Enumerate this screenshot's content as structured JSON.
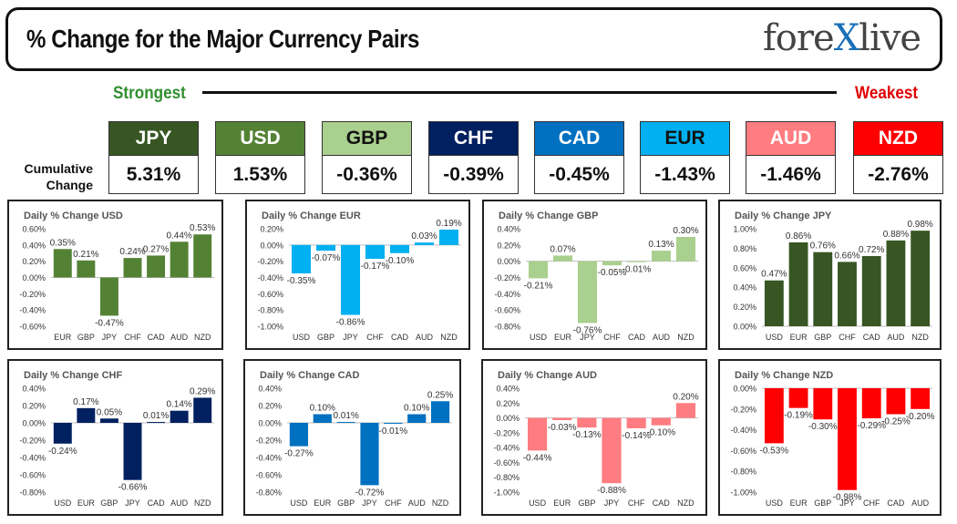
{
  "header": {
    "title": "% Change for the Major Currency Pairs",
    "logo_pre": "fore",
    "logo_x": "X",
    "logo_post": "live"
  },
  "scale": {
    "strongest": "Strongest",
    "weakest": "Weakest"
  },
  "cumulative": {
    "label_line1": "Cumulative",
    "label_line2": "Change",
    "tiles": [
      {
        "code": "JPY",
        "value": "5.31%",
        "bg": "#375623",
        "fg": "#ffffff"
      },
      {
        "code": "USD",
        "value": "1.53%",
        "bg": "#548235",
        "fg": "#ffffff"
      },
      {
        "code": "GBP",
        "value": "-0.36%",
        "bg": "#a9d08e",
        "fg": "#111111"
      },
      {
        "code": "CHF",
        "value": "-0.39%",
        "bg": "#002060",
        "fg": "#ffffff"
      },
      {
        "code": "CAD",
        "value": "-0.45%",
        "bg": "#0070c0",
        "fg": "#ffffff"
      },
      {
        "code": "EUR",
        "value": "-1.43%",
        "bg": "#00b0f0",
        "fg": "#111111"
      },
      {
        "code": "AUD",
        "value": "-1.46%",
        "bg": "#ff7c80",
        "fg": "#ffffff"
      },
      {
        "code": "NZD",
        "value": "-2.76%",
        "bg": "#ff0000",
        "fg": "#ffffff"
      }
    ]
  },
  "chart_data": [
    {
      "type": "bar",
      "title": "Daily % Change USD",
      "color": "#548235",
      "categories": [
        "EUR",
        "GBP",
        "JPY",
        "CHF",
        "CAD",
        "AUD",
        "NZD"
      ],
      "values": [
        0.35,
        0.21,
        -0.47,
        0.24,
        0.27,
        0.44,
        0.53
      ],
      "labels": [
        "0.35%",
        "0.21%",
        "-0.47%",
        "0.24%",
        "0.27%",
        "0.44%",
        "0.53%"
      ],
      "ylim": [
        -0.6,
        0.6
      ],
      "ticks": [
        0.6,
        0.4,
        0.2,
        0,
        -0.2,
        -0.4,
        -0.6
      ],
      "tick_labels": [
        "0.60%",
        "0.40%",
        "0.20%",
        "0.00%",
        "-0.20%",
        "-0.40%",
        "-0.60%"
      ]
    },
    {
      "type": "bar",
      "title": "Daily % Change EUR",
      "color": "#00b0f0",
      "categories": [
        "USD",
        "GBP",
        "JPY",
        "CHF",
        "CAD",
        "AUD",
        "NZD"
      ],
      "values": [
        -0.35,
        -0.07,
        -0.86,
        -0.17,
        -0.1,
        0.03,
        0.19
      ],
      "labels": [
        "-0.35%",
        "-0.07%",
        "-0.86%",
        "-0.17%",
        "-0.10%",
        "0.03%",
        "0.19%"
      ],
      "ylim": [
        -1.0,
        0.2
      ],
      "ticks": [
        0.2,
        0,
        -0.2,
        -0.4,
        -0.6,
        -0.8,
        -1.0
      ],
      "tick_labels": [
        "0.20%",
        "0.00%",
        "-0.20%",
        "-0.40%",
        "-0.60%",
        "-0.80%",
        "-1.00%"
      ]
    },
    {
      "type": "bar",
      "title": "Daily % Change GBP",
      "color": "#a9d08e",
      "categories": [
        "USD",
        "EUR",
        "JPY",
        "CHF",
        "CAD",
        "AUD",
        "NZD"
      ],
      "values": [
        -0.21,
        0.07,
        -0.76,
        -0.05,
        -0.01,
        0.13,
        0.3
      ],
      "labels": [
        "-0.21%",
        "0.07%",
        "-0.76%",
        "-0.05%",
        "-0.01%",
        "0.13%",
        "0.30%"
      ],
      "ylim": [
        -0.8,
        0.4
      ],
      "ticks": [
        0.4,
        0.2,
        0,
        -0.2,
        -0.4,
        -0.6,
        -0.8
      ],
      "tick_labels": [
        "0.40%",
        "0.20%",
        "0.00%",
        "-0.20%",
        "-0.40%",
        "-0.60%",
        "-0.80%"
      ]
    },
    {
      "type": "bar",
      "title": "Daily % Change JPY",
      "color": "#375623",
      "categories": [
        "USD",
        "EUR",
        "GBP",
        "CHF",
        "CAD",
        "AUD",
        "NZD"
      ],
      "values": [
        0.47,
        0.86,
        0.76,
        0.66,
        0.72,
        0.88,
        0.98
      ],
      "labels": [
        "0.47%",
        "0.86%",
        "0.76%",
        "0.66%",
        "0.72%",
        "0.88%",
        "0.98%"
      ],
      "ylim": [
        0,
        1.0
      ],
      "ticks": [
        1.0,
        0.8,
        0.6,
        0.4,
        0.2,
        0
      ],
      "tick_labels": [
        "1.00%",
        "0.80%",
        "0.60%",
        "0.40%",
        "0.20%",
        "0.00%"
      ]
    },
    {
      "type": "bar",
      "title": "Daily % Change CHF",
      "color": "#002060",
      "categories": [
        "USD",
        "EUR",
        "GBP",
        "JPY",
        "CAD",
        "AUD",
        "NZD"
      ],
      "values": [
        -0.24,
        0.17,
        0.05,
        -0.66,
        0.01,
        0.14,
        0.29
      ],
      "labels": [
        "-0.24%",
        "0.17%",
        "0.05%",
        "-0.66%",
        "0.01%",
        "0.14%",
        "0.29%"
      ],
      "ylim": [
        -0.8,
        0.4
      ],
      "ticks": [
        0.4,
        0.2,
        0,
        -0.2,
        -0.4,
        -0.6,
        -0.8
      ],
      "tick_labels": [
        "0.40%",
        "0.20%",
        "0.00%",
        "-0.20%",
        "-0.40%",
        "-0.60%",
        "-0.80%"
      ]
    },
    {
      "type": "bar",
      "title": "Daily % Change CAD",
      "color": "#0070c0",
      "categories": [
        "USD",
        "EUR",
        "GBP",
        "JPY",
        "CHF",
        "AUD",
        "NZD"
      ],
      "values": [
        -0.27,
        0.1,
        0.01,
        -0.72,
        -0.01,
        0.1,
        0.25
      ],
      "labels": [
        "-0.27%",
        "0.10%",
        "0.01%",
        "-0.72%",
        "-0.01%",
        "0.10%",
        "0.25%"
      ],
      "ylim": [
        -0.8,
        0.4
      ],
      "ticks": [
        0.4,
        0.2,
        0,
        -0.2,
        -0.4,
        -0.6,
        -0.8
      ],
      "tick_labels": [
        "0.40%",
        "0.20%",
        "0.00%",
        "-0.20%",
        "-0.40%",
        "-0.60%",
        "-0.80%"
      ]
    },
    {
      "type": "bar",
      "title": "Daily % Change AUD",
      "color": "#ff7c80",
      "categories": [
        "USD",
        "EUR",
        "GBP",
        "JPY",
        "CHF",
        "CAD",
        "NZD"
      ],
      "values": [
        -0.44,
        -0.03,
        -0.13,
        -0.88,
        -0.14,
        -0.1,
        0.2
      ],
      "labels": [
        "-0.44%",
        "-0.03%",
        "-0.13%",
        "-0.88%",
        "-0.14%",
        "-0.10%",
        "0.20%"
      ],
      "ylim": [
        -1.0,
        0.4
      ],
      "ticks": [
        0.4,
        0.2,
        0,
        -0.2,
        -0.4,
        -0.6,
        -0.8,
        -1.0
      ],
      "tick_labels": [
        "0.40%",
        "0.20%",
        "0.00%",
        "-0.20%",
        "-0.40%",
        "-0.60%",
        "-0.80%",
        "-1.00%"
      ]
    },
    {
      "type": "bar",
      "title": "Daily % Change NZD",
      "color": "#ff0000",
      "categories": [
        "USD",
        "EUR",
        "GBP",
        "JPY",
        "CHF",
        "CAD",
        "AUD"
      ],
      "values": [
        -0.53,
        -0.19,
        -0.3,
        -0.98,
        -0.29,
        -0.25,
        -0.2
      ],
      "labels": [
        "-0.53%",
        "-0.19%",
        "-0.30%",
        "-0.98%",
        "-0.29%",
        "-0.25%",
        "-0.20%"
      ],
      "ylim": [
        -1.0,
        0
      ],
      "ticks": [
        0,
        -0.2,
        -0.4,
        -0.6,
        -0.8,
        -1.0
      ],
      "tick_labels": [
        "0.00%",
        "-0.20%",
        "-0.40%",
        "-0.60%",
        "-0.80%",
        "-1.00%"
      ]
    }
  ]
}
